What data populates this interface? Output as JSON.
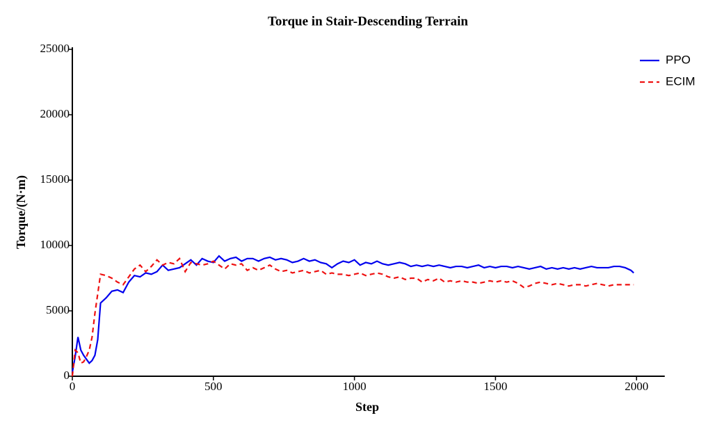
{
  "chart_data": {
    "type": "line",
    "title": "Torque in Stair-Descending Terrain",
    "x_label": "Step",
    "y_label": "Torque/(N·m)",
    "x": [
      0,
      10,
      20,
      30,
      40,
      50,
      60,
      70,
      80,
      90,
      100,
      120,
      140,
      160,
      180,
      200,
      220,
      240,
      260,
      280,
      300,
      320,
      340,
      360,
      380,
      400,
      420,
      440,
      460,
      480,
      500,
      520,
      540,
      560,
      580,
      600,
      620,
      640,
      660,
      680,
      700,
      720,
      740,
      760,
      780,
      800,
      820,
      840,
      860,
      880,
      900,
      920,
      940,
      960,
      980,
      1000,
      1020,
      1040,
      1060,
      1080,
      1100,
      1120,
      1140,
      1160,
      1180,
      1200,
      1220,
      1240,
      1260,
      1280,
      1300,
      1320,
      1340,
      1360,
      1380,
      1400,
      1420,
      1440,
      1460,
      1480,
      1500,
      1520,
      1540,
      1560,
      1580,
      1600,
      1620,
      1640,
      1660,
      1680,
      1700,
      1720,
      1740,
      1760,
      1780,
      1800,
      1820,
      1840,
      1860,
      1880,
      1900,
      1920,
      1940,
      1960,
      1980,
      1990
    ],
    "series": [
      {
        "name": "PPO",
        "color": "#0000ee",
        "line_style": "solid",
        "values": [
          300,
          1500,
          3000,
          2000,
          1600,
          1300,
          1000,
          1200,
          1600,
          2800,
          5600,
          6000,
          6500,
          6600,
          6400,
          7200,
          7700,
          7600,
          7900,
          7800,
          8000,
          8500,
          8100,
          8200,
          8300,
          8600,
          8900,
          8500,
          9000,
          8800,
          8700,
          9200,
          8800,
          9000,
          9100,
          8800,
          9000,
          9000,
          8800,
          9000,
          9100,
          8900,
          9000,
          8900,
          8700,
          8800,
          9000,
          8800,
          8900,
          8700,
          8600,
          8300,
          8600,
          8800,
          8700,
          8900,
          8500,
          8700,
          8600,
          8800,
          8600,
          8500,
          8600,
          8700,
          8600,
          8400,
          8500,
          8400,
          8500,
          8400,
          8500,
          8400,
          8300,
          8400,
          8400,
          8300,
          8400,
          8500,
          8300,
          8400,
          8300,
          8400,
          8400,
          8300,
          8400,
          8300,
          8200,
          8300,
          8400,
          8200,
          8300,
          8200,
          8300,
          8200,
          8300,
          8200,
          8300,
          8400,
          8300,
          8300,
          8300,
          8400,
          8400,
          8300,
          8100,
          7900
        ]
      },
      {
        "name": "ECIM",
        "color": "#ee1111",
        "line_style": "dashed",
        "values": [
          0,
          2000,
          1800,
          1000,
          1100,
          1500,
          2000,
          3000,
          4800,
          6300,
          7800,
          7700,
          7500,
          7200,
          7000,
          7600,
          8200,
          8500,
          8000,
          8400,
          8900,
          8500,
          8700,
          8600,
          9000,
          8000,
          8700,
          8600,
          8500,
          8600,
          8800,
          8500,
          8200,
          8600,
          8500,
          8600,
          8100,
          8300,
          8100,
          8300,
          8500,
          8200,
          8000,
          8100,
          7900,
          8000,
          8100,
          7900,
          8000,
          8100,
          7800,
          7900,
          7800,
          7800,
          7700,
          7800,
          7900,
          7700,
          7800,
          7900,
          7800,
          7600,
          7500,
          7600,
          7400,
          7500,
          7500,
          7200,
          7400,
          7300,
          7500,
          7200,
          7300,
          7200,
          7300,
          7200,
          7200,
          7100,
          7200,
          7300,
          7200,
          7300,
          7200,
          7300,
          7100,
          6800,
          6900,
          7100,
          7200,
          7100,
          7000,
          7100,
          7000,
          6900,
          7000,
          7000,
          6900,
          7000,
          7100,
          7000,
          6900,
          7000,
          7000,
          7000,
          7000,
          7000
        ]
      }
    ],
    "xlim": [
      0,
      2100
    ],
    "ylim": [
      0,
      25000
    ],
    "xticks": [
      0,
      500,
      1000,
      1500,
      2000
    ],
    "yticks": [
      0,
      5000,
      10000,
      15000,
      20000,
      25000
    ],
    "grid": false,
    "legend": "upper right"
  }
}
